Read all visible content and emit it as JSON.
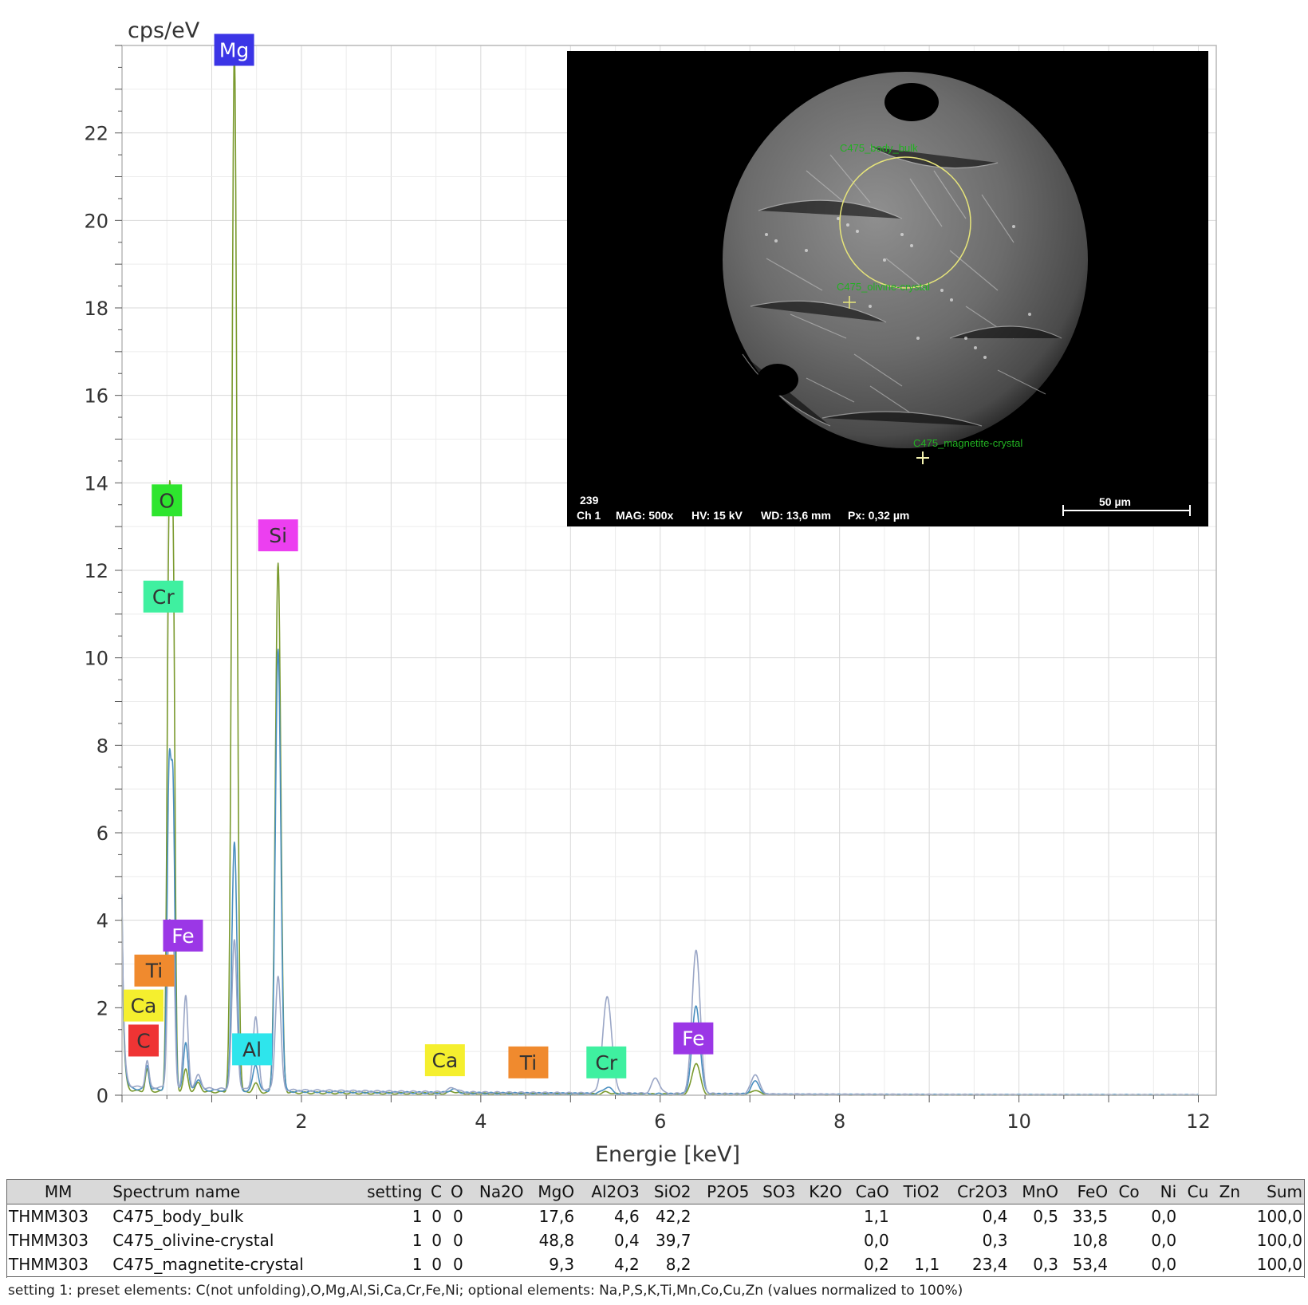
{
  "chart_data": {
    "type": "line",
    "ylabel": "cps/eV",
    "xlabel": "Energie [keV]",
    "xlim": [
      0,
      12.2
    ],
    "ylim": [
      0,
      24
    ],
    "x_ticks": [
      2,
      4,
      6,
      8,
      10,
      12
    ],
    "y_ticks": [
      0,
      2,
      4,
      6,
      8,
      10,
      12,
      14,
      16,
      18,
      20,
      22
    ],
    "grid": true,
    "series": [
      {
        "color": "#7a9a2e",
        "background": 0.1,
        "peaks": [
          [
            0.28,
            0.5,
            0.02
          ],
          [
            0.525,
            12.7,
            0.022
          ],
          [
            0.57,
            11.5,
            0.02
          ],
          [
            0.71,
            0.5,
            0.025
          ],
          [
            0.85,
            0.2,
            0.03
          ],
          [
            1.253,
            23.8,
            0.028
          ],
          [
            1.49,
            0.2,
            0.03
          ],
          [
            1.74,
            12.1,
            0.03
          ],
          [
            3.69,
            0.05,
            0.05
          ],
          [
            5.41,
            0.05,
            0.05
          ],
          [
            6.4,
            0.72,
            0.045
          ],
          [
            7.06,
            0.1,
            0.045
          ]
        ]
      },
      {
        "color": "#4a8fc0",
        "background": 0.15,
        "peaks": [
          [
            0.28,
            0.55,
            0.02
          ],
          [
            0.525,
            7.1,
            0.022
          ],
          [
            0.57,
            6.3,
            0.02
          ],
          [
            0.71,
            1.1,
            0.025
          ],
          [
            0.85,
            0.25,
            0.03
          ],
          [
            1.253,
            5.7,
            0.028
          ],
          [
            1.49,
            0.6,
            0.03
          ],
          [
            1.74,
            10.1,
            0.03
          ],
          [
            3.69,
            0.08,
            0.05
          ],
          [
            5.41,
            0.15,
            0.05
          ],
          [
            6.4,
            2.0,
            0.045
          ],
          [
            7.06,
            0.3,
            0.045
          ]
        ]
      },
      {
        "color": "#9aa6c6",
        "background": 0.2,
        "peaks": [
          [
            0.28,
            0.6,
            0.02
          ],
          [
            0.525,
            3.5,
            0.022
          ],
          [
            0.57,
            3.2,
            0.02
          ],
          [
            0.71,
            2.1,
            0.025
          ],
          [
            0.85,
            0.3,
            0.03
          ],
          [
            1.253,
            3.4,
            0.028
          ],
          [
            1.49,
            1.65,
            0.03
          ],
          [
            1.74,
            2.6,
            0.03
          ],
          [
            3.69,
            0.1,
            0.05
          ],
          [
            5.41,
            2.2,
            0.05
          ],
          [
            5.95,
            0.35,
            0.045
          ],
          [
            6.4,
            3.3,
            0.045
          ],
          [
            7.06,
            0.45,
            0.045
          ]
        ]
      }
    ],
    "element_labels": [
      {
        "text": "Mg",
        "x": 1.25,
        "y": 23.9,
        "color": "#3b35e6",
        "text_color": "#ffffff"
      },
      {
        "text": "O",
        "x": 0.5,
        "y": 13.6,
        "color": "#2ee52e",
        "text_color": "#333333"
      },
      {
        "text": "Si",
        "x": 1.74,
        "y": 12.8,
        "color": "#ec3ff0",
        "text_color": "#333333"
      },
      {
        "text": "Cr",
        "x": 0.46,
        "y": 11.4,
        "color": "#3ff0a0",
        "text_color": "#333333"
      },
      {
        "text": "Fe",
        "x": 0.68,
        "y": 3.65,
        "color": "#9b37e6",
        "text_color": "#ffffff"
      },
      {
        "text": "Ti",
        "x": 0.36,
        "y": 2.85,
        "color": "#f08a2e",
        "text_color": "#333333"
      },
      {
        "text": "Ca",
        "x": 0.24,
        "y": 2.05,
        "color": "#f5ef2e",
        "text_color": "#333333"
      },
      {
        "text": "C",
        "x": 0.24,
        "y": 1.25,
        "color": "#ef3434",
        "text_color": "#333333"
      },
      {
        "text": "Al",
        "x": 1.45,
        "y": 1.05,
        "color": "#2ee5ec",
        "text_color": "#333333"
      },
      {
        "text": "Ca",
        "x": 3.6,
        "y": 0.8,
        "color": "#f5ef2e",
        "text_color": "#333333"
      },
      {
        "text": "Ti",
        "x": 4.53,
        "y": 0.75,
        "color": "#f08a2e",
        "text_color": "#333333"
      },
      {
        "text": "Cr",
        "x": 5.4,
        "y": 0.75,
        "color": "#3ff0a0",
        "text_color": "#333333"
      },
      {
        "text": "Fe",
        "x": 6.37,
        "y": 1.3,
        "color": "#9b37e6",
        "text_color": "#ffffff"
      }
    ]
  },
  "sem_image": {
    "image_number": "239",
    "channel": "Ch 1",
    "mag": "MAG: 500x",
    "hv": "HV: 15 kV",
    "wd": "WD: 13,6 mm",
    "px": "Px: 0,32 µm",
    "scale_bar": "50 µm",
    "spots": [
      "C475_body_bulk",
      "C475_olivine-crystal",
      "C475_magnetite-crystal"
    ]
  },
  "table": {
    "headers": [
      "MM",
      "Spectrum name",
      "setting",
      "C",
      "O",
      "Na2O",
      "MgO",
      "Al2O3",
      "SiO2",
      "P2O5",
      "SO3",
      "K2O",
      "CaO",
      "TiO2",
      "Cr2O3",
      "MnO",
      "FeO",
      "Co",
      "Ni",
      "Cu",
      "Zn",
      "Sum"
    ],
    "rows": [
      [
        "THMM303",
        "C475_body_bulk",
        "1",
        "0",
        "0",
        "",
        "17,6",
        "4,6",
        "42,2",
        "",
        "",
        "",
        "1,1",
        "",
        "0,4",
        "0,5",
        "33,5",
        "",
        "0,0",
        "",
        "",
        "100,0"
      ],
      [
        "THMM303",
        "C475_olivine-crystal",
        "1",
        "0",
        "0",
        "",
        "48,8",
        "0,4",
        "39,7",
        "",
        "",
        "",
        "0,0",
        "",
        "0,3",
        "",
        "10,8",
        "",
        "0,0",
        "",
        "",
        "100,0"
      ],
      [
        "THMM303",
        "C475_magnetite-crystal",
        "1",
        "0",
        "0",
        "",
        "9,3",
        "4,2",
        "8,2",
        "",
        "",
        "",
        "0,2",
        "1,1",
        "23,4",
        "0,3",
        "53,4",
        "",
        "0,0",
        "",
        "",
        "100,0"
      ]
    ],
    "footnote": "setting 1: preset elements: C(not unfolding),O,Mg,Al,Si,Ca,Cr,Fe,Ni; optional elements: Na,P,S,K,Ti,Mn,Co,Cu,Zn (values normalized to 100%)"
  }
}
